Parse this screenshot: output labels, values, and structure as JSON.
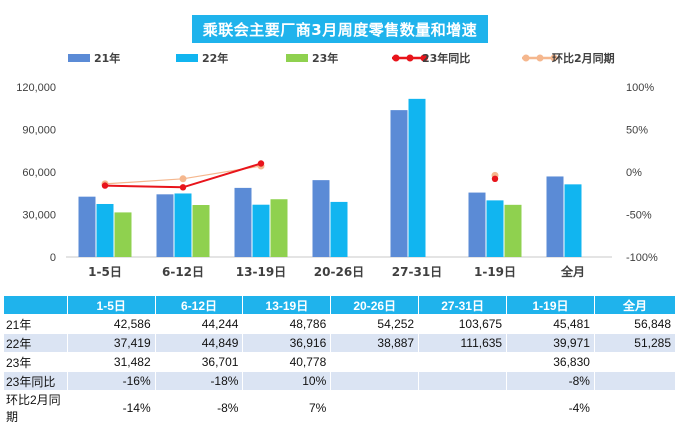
{
  "chart_data": {
    "title": "乘联会主要厂商3月周度零售数量和增速",
    "type": "bar",
    "categories": [
      "1-5日",
      "6-12日",
      "13-19日",
      "20-26日",
      "27-31日",
      "1-19日",
      "全月"
    ],
    "series": [
      {
        "name": "21年",
        "color": "#5b8bd6",
        "values": [
          42586,
          44244,
          48786,
          54252,
          103675,
          45481,
          56848
        ]
      },
      {
        "name": "22年",
        "color": "#11b5f0",
        "values": [
          37419,
          44849,
          36916,
          38887,
          111635,
          39971,
          51285
        ]
      },
      {
        "name": "23年",
        "color": "#8fd14f",
        "values": [
          31482,
          36701,
          40778,
          null,
          null,
          36830,
          null
        ]
      }
    ],
    "line_series": [
      {
        "name": "23年同比",
        "color": "#e8141b",
        "values": [
          -0.16,
          -0.18,
          0.1,
          null,
          null,
          -0.08,
          null
        ],
        "labels": [
          "-16%",
          "-18%",
          "10%",
          "",
          "",
          "-8%",
          ""
        ]
      },
      {
        "name": "环比2月同期",
        "color": "#f5b78e",
        "values": [
          -0.14,
          -0.08,
          0.07,
          null,
          null,
          -0.04,
          null
        ],
        "labels": [
          "-14%",
          "-8%",
          "7%",
          "",
          "",
          "-4%",
          ""
        ]
      }
    ],
    "y_left": {
      "ticks": [
        "120,000",
        "90,000",
        "60,000",
        "30,000",
        "0"
      ],
      "lim": [
        0,
        120000
      ]
    },
    "y_right": {
      "ticks": [
        "100%",
        "50%",
        "0%",
        "-50%",
        "-100%"
      ],
      "lim": [
        -1.0,
        1.0
      ]
    },
    "legend_position": "top"
  },
  "table": {
    "headers": [
      "",
      "1-5日",
      "6-12日",
      "13-19日",
      "20-26日",
      "27-31日",
      "1-19日",
      "全月"
    ],
    "rows": [
      [
        "21年",
        "42,586",
        "44,244",
        "48,786",
        "54,252",
        "103,675",
        "45,481",
        "56,848"
      ],
      [
        "22年",
        "37,419",
        "44,849",
        "36,916",
        "38,887",
        "111,635",
        "39,971",
        "51,285"
      ],
      [
        "23年",
        "31,482",
        "36,701",
        "40,778",
        "",
        "",
        "36,830",
        ""
      ],
      [
        "23年同比",
        "-16%",
        "-18%",
        "10%",
        "",
        "",
        "-8%",
        ""
      ],
      [
        "环比2月同期",
        "-14%",
        "-8%",
        "7%",
        "",
        "",
        "-4%",
        ""
      ]
    ]
  }
}
